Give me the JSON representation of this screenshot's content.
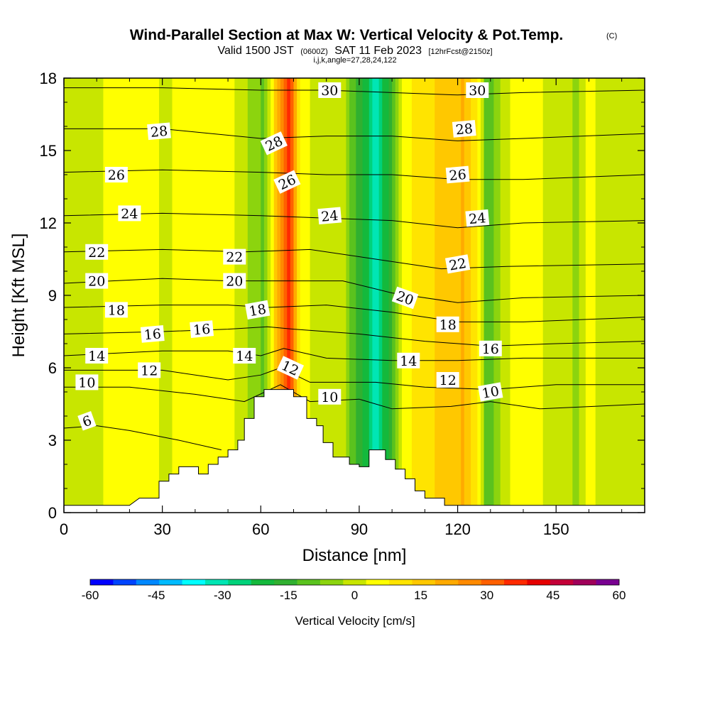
{
  "chart_data": {
    "type": "heatmap",
    "title": "Wind-Parallel Section at Max W: Vertical Velocity & Pot.Temp.",
    "title_mark": "(C)",
    "subtitle_valid": "Valid 1500 JST",
    "subtitle_zulu": "(0600Z)",
    "subtitle_date": "SAT 11 Feb 2023",
    "subtitle_fcst": "[12hrFcst@2150z]",
    "subtitle_ijk": "i,j,k,angle=27,28,24,122",
    "xlabel": "Distance [nm]",
    "ylabel": "Height [Kft MSL]",
    "xlim": [
      0,
      177
    ],
    "ylim": [
      0,
      18
    ],
    "x_ticks": [
      "0",
      "30",
      "60",
      "90",
      "120",
      "150"
    ],
    "y_ticks": [
      "0",
      "3",
      "6",
      "9",
      "12",
      "15",
      "18"
    ],
    "colorbar": {
      "label": "Vertical Velocity [cm/s]",
      "tick_labels": [
        "-60",
        "-45",
        "-30",
        "-15",
        "0",
        "15",
        "30",
        "45",
        "60"
      ],
      "range": [
        -60,
        60
      ],
      "colors": [
        "#0000ff",
        "#0044ff",
        "#0088ff",
        "#00bbff",
        "#00ffff",
        "#00e6b4",
        "#00d27a",
        "#14b93c",
        "#30b030",
        "#5ac21e",
        "#8cd40e",
        "#c8e600",
        "#ffff00",
        "#ffe400",
        "#ffc800",
        "#ffaa00",
        "#ff8a00",
        "#ff6000",
        "#ff2a00",
        "#e60000",
        "#c40038",
        "#a0005a",
        "#780090"
      ]
    },
    "velocity_bands": [
      {
        "x": 0,
        "w": 0
      },
      {
        "x": 5,
        "w": 2
      },
      {
        "x": 15,
        "w": 3
      },
      {
        "x": 25,
        "w": 4
      },
      {
        "x": 32,
        "w": 2
      },
      {
        "x": 40,
        "w": 6
      },
      {
        "x": 46,
        "w": 3
      },
      {
        "x": 52,
        "w": 3
      },
      {
        "x": 57,
        "w": -5
      },
      {
        "x": 61,
        "w": -10
      },
      {
        "x": 63,
        "w": 2
      },
      {
        "x": 66,
        "w": 28
      },
      {
        "x": 69,
        "w": 38
      },
      {
        "x": 72,
        "w": 8
      },
      {
        "x": 75,
        "w": 2
      },
      {
        "x": 80,
        "w": 2
      },
      {
        "x": 85,
        "w": 0
      },
      {
        "x": 88,
        "w": -10
      },
      {
        "x": 91,
        "w": -18
      },
      {
        "x": 95,
        "w": -32
      },
      {
        "x": 99,
        "w": -20
      },
      {
        "x": 103,
        "w": 5
      },
      {
        "x": 108,
        "w": 10
      },
      {
        "x": 113,
        "w": 14
      },
      {
        "x": 118,
        "w": 16
      },
      {
        "x": 122,
        "w": 20
      },
      {
        "x": 126,
        "w": 8
      },
      {
        "x": 129,
        "w": -12
      },
      {
        "x": 132,
        "w": -5
      },
      {
        "x": 137,
        "w": 4
      },
      {
        "x": 142,
        "w": 6
      },
      {
        "x": 147,
        "w": 2
      },
      {
        "x": 152,
        "w": 0
      },
      {
        "x": 156,
        "w": -4
      },
      {
        "x": 160,
        "w": 4
      },
      {
        "x": 165,
        "w": 0
      },
      {
        "x": 170,
        "w": -2
      },
      {
        "x": 177,
        "w": 0
      }
    ],
    "terrain_profile": [
      [
        0,
        0.3
      ],
      [
        20,
        0.3
      ],
      [
        23,
        0.6
      ],
      [
        29,
        0.6
      ],
      [
        29,
        1.3
      ],
      [
        32,
        1.3
      ],
      [
        32,
        1.6
      ],
      [
        35,
        1.6
      ],
      [
        35,
        1.9
      ],
      [
        41,
        1.9
      ],
      [
        41,
        1.6
      ],
      [
        44,
        1.6
      ],
      [
        44,
        2.0
      ],
      [
        47,
        2.0
      ],
      [
        47,
        2.3
      ],
      [
        50,
        2.3
      ],
      [
        50,
        2.6
      ],
      [
        53,
        2.6
      ],
      [
        53,
        3.0
      ],
      [
        55,
        3.0
      ],
      [
        55,
        3.9
      ],
      [
        58,
        3.9
      ],
      [
        58,
        4.8
      ],
      [
        61,
        4.8
      ],
      [
        61,
        5.1
      ],
      [
        70,
        5.1
      ],
      [
        70,
        4.8
      ],
      [
        74,
        4.8
      ],
      [
        74,
        3.9
      ],
      [
        77,
        3.9
      ],
      [
        77,
        3.6
      ],
      [
        79,
        3.6
      ],
      [
        79,
        2.9
      ],
      [
        82,
        2.9
      ],
      [
        82,
        2.3
      ],
      [
        87,
        2.3
      ],
      [
        87,
        2.0
      ],
      [
        90,
        2.0
      ],
      [
        90,
        1.9
      ],
      [
        93,
        1.9
      ],
      [
        93,
        2.6
      ],
      [
        98,
        2.6
      ],
      [
        98,
        2.2
      ],
      [
        101,
        2.2
      ],
      [
        101,
        1.8
      ],
      [
        104,
        1.8
      ],
      [
        104,
        1.4
      ],
      [
        107,
        1.4
      ],
      [
        107,
        0.9
      ],
      [
        110,
        0.9
      ],
      [
        110,
        0.6
      ],
      [
        116,
        0.6
      ],
      [
        116,
        0.3
      ],
      [
        177,
        0.3
      ]
    ],
    "theta_contours": [
      {
        "label": "6",
        "pts": [
          [
            0,
            3.5
          ],
          [
            10,
            3.6
          ],
          [
            20,
            3.4
          ],
          [
            35,
            3.0
          ],
          [
            48,
            2.6
          ]
        ]
      },
      {
        "label": "10",
        "pts": [
          [
            0,
            5.2
          ],
          [
            20,
            5.2
          ],
          [
            40,
            4.9
          ],
          [
            55,
            4.6
          ],
          [
            66,
            5.3
          ],
          [
            75,
            4.6
          ],
          [
            90,
            4.7
          ],
          [
            100,
            4.3
          ],
          [
            118,
            4.4
          ],
          [
            130,
            4.6
          ],
          [
            145,
            4.3
          ],
          [
            177,
            4.5
          ]
        ]
      },
      {
        "label": "12",
        "pts": [
          [
            0,
            5.9
          ],
          [
            30,
            5.9
          ],
          [
            50,
            5.5
          ],
          [
            60,
            5.7
          ],
          [
            66,
            6.0
          ],
          [
            75,
            5.4
          ],
          [
            95,
            5.4
          ],
          [
            110,
            5.2
          ],
          [
            130,
            5.1
          ],
          [
            150,
            5.3
          ],
          [
            177,
            5.3
          ]
        ]
      },
      {
        "label": "14",
        "pts": [
          [
            0,
            6.5
          ],
          [
            30,
            6.7
          ],
          [
            50,
            6.7
          ],
          [
            60,
            6.5
          ],
          [
            67,
            6.8
          ],
          [
            80,
            6.4
          ],
          [
            100,
            6.3
          ],
          [
            120,
            6.3
          ],
          [
            140,
            6.4
          ],
          [
            177,
            6.4
          ]
        ]
      },
      {
        "label": "16",
        "pts": [
          [
            0,
            7.4
          ],
          [
            30,
            7.5
          ],
          [
            50,
            7.6
          ],
          [
            62,
            7.7
          ],
          [
            70,
            7.6
          ],
          [
            90,
            7.4
          ],
          [
            110,
            7.1
          ],
          [
            130,
            6.9
          ],
          [
            150,
            7.0
          ],
          [
            177,
            7.1
          ]
        ]
      },
      {
        "label": "18",
        "pts": [
          [
            0,
            8.5
          ],
          [
            30,
            8.6
          ],
          [
            50,
            8.6
          ],
          [
            62,
            8.5
          ],
          [
            80,
            8.6
          ],
          [
            100,
            8.3
          ],
          [
            120,
            7.9
          ],
          [
            140,
            7.9
          ],
          [
            177,
            8.1
          ]
        ]
      },
      {
        "label": "20",
        "pts": [
          [
            0,
            9.5
          ],
          [
            30,
            9.7
          ],
          [
            50,
            9.6
          ],
          [
            65,
            9.6
          ],
          [
            85,
            9.6
          ],
          [
            100,
            9.1
          ],
          [
            120,
            8.7
          ],
          [
            140,
            8.9
          ],
          [
            177,
            9.0
          ]
        ]
      },
      {
        "label": "22",
        "pts": [
          [
            0,
            10.8
          ],
          [
            30,
            10.9
          ],
          [
            55,
            10.8
          ],
          [
            75,
            10.9
          ],
          [
            95,
            10.5
          ],
          [
            115,
            10.1
          ],
          [
            135,
            10.2
          ],
          [
            177,
            10.3
          ]
        ]
      },
      {
        "label": "24",
        "pts": [
          [
            0,
            12.3
          ],
          [
            30,
            12.4
          ],
          [
            60,
            12.3
          ],
          [
            80,
            12.2
          ],
          [
            100,
            12.1
          ],
          [
            120,
            11.8
          ],
          [
            140,
            12.0
          ],
          [
            177,
            12.1
          ]
        ]
      },
      {
        "label": "26",
        "pts": [
          [
            0,
            14.1
          ],
          [
            30,
            14.2
          ],
          [
            60,
            14.1
          ],
          [
            80,
            14.0
          ],
          [
            100,
            14.0
          ],
          [
            120,
            13.8
          ],
          [
            140,
            13.8
          ],
          [
            177,
            14.0
          ]
        ]
      },
      {
        "label": "28",
        "pts": [
          [
            0,
            15.9
          ],
          [
            30,
            15.9
          ],
          [
            60,
            15.5
          ],
          [
            80,
            15.6
          ],
          [
            100,
            15.6
          ],
          [
            120,
            15.4
          ],
          [
            140,
            15.5
          ],
          [
            177,
            15.7
          ]
        ]
      },
      {
        "label": "30",
        "pts": [
          [
            0,
            17.6
          ],
          [
            30,
            17.6
          ],
          [
            60,
            17.5
          ],
          [
            80,
            17.5
          ],
          [
            100,
            17.4
          ],
          [
            120,
            17.3
          ],
          [
            140,
            17.4
          ],
          [
            177,
            17.5
          ]
        ]
      }
    ],
    "contour_labels": [
      {
        "text": "30",
        "x": 81,
        "y": 17.5,
        "rot": 0
      },
      {
        "text": "30",
        "x": 126,
        "y": 17.5,
        "rot": 0
      },
      {
        "text": "28",
        "x": 29,
        "y": 15.8,
        "rot": -5
      },
      {
        "text": "28",
        "x": 64,
        "y": 15.3,
        "rot": -25
      },
      {
        "text": "28",
        "x": 122,
        "y": 15.9,
        "rot": -5
      },
      {
        "text": "26",
        "x": 16,
        "y": 14.0,
        "rot": 0
      },
      {
        "text": "26",
        "x": 68,
        "y": 13.7,
        "rot": -25
      },
      {
        "text": "26",
        "x": 120,
        "y": 14.0,
        "rot": -5
      },
      {
        "text": "24",
        "x": 20,
        "y": 12.4,
        "rot": 0
      },
      {
        "text": "24",
        "x": 81,
        "y": 12.3,
        "rot": -5
      },
      {
        "text": "24",
        "x": 126,
        "y": 12.2,
        "rot": -5
      },
      {
        "text": "22",
        "x": 10,
        "y": 10.8,
        "rot": 0
      },
      {
        "text": "22",
        "x": 52,
        "y": 10.6,
        "rot": 0
      },
      {
        "text": "22",
        "x": 120,
        "y": 10.3,
        "rot": -10
      },
      {
        "text": "20",
        "x": 10,
        "y": 9.6,
        "rot": 0
      },
      {
        "text": "20",
        "x": 52,
        "y": 9.6,
        "rot": 0
      },
      {
        "text": "20",
        "x": 104,
        "y": 8.9,
        "rot": 20
      },
      {
        "text": "18",
        "x": 16,
        "y": 8.4,
        "rot": 0
      },
      {
        "text": "18",
        "x": 59,
        "y": 8.4,
        "rot": -10
      },
      {
        "text": "18",
        "x": 117,
        "y": 7.8,
        "rot": 0
      },
      {
        "text": "16",
        "x": 27,
        "y": 7.4,
        "rot": -5
      },
      {
        "text": "16",
        "x": 42,
        "y": 7.6,
        "rot": -5
      },
      {
        "text": "16",
        "x": 130,
        "y": 6.8,
        "rot": 0
      },
      {
        "text": "14",
        "x": 10,
        "y": 6.5,
        "rot": 0
      },
      {
        "text": "14",
        "x": 55,
        "y": 6.5,
        "rot": 0
      },
      {
        "text": "14",
        "x": 105,
        "y": 6.3,
        "rot": 0
      },
      {
        "text": "12",
        "x": 26,
        "y": 5.9,
        "rot": 0
      },
      {
        "text": "12",
        "x": 69,
        "y": 6.0,
        "rot": 25
      },
      {
        "text": "12",
        "x": 117,
        "y": 5.5,
        "rot": 0
      },
      {
        "text": "10",
        "x": 7,
        "y": 5.4,
        "rot": 0
      },
      {
        "text": "10",
        "x": 81,
        "y": 4.8,
        "rot": 0
      },
      {
        "text": "10",
        "x": 130,
        "y": 5.0,
        "rot": -10
      },
      {
        "text": "6",
        "x": 7,
        "y": 3.8,
        "rot": -20
      }
    ]
  }
}
